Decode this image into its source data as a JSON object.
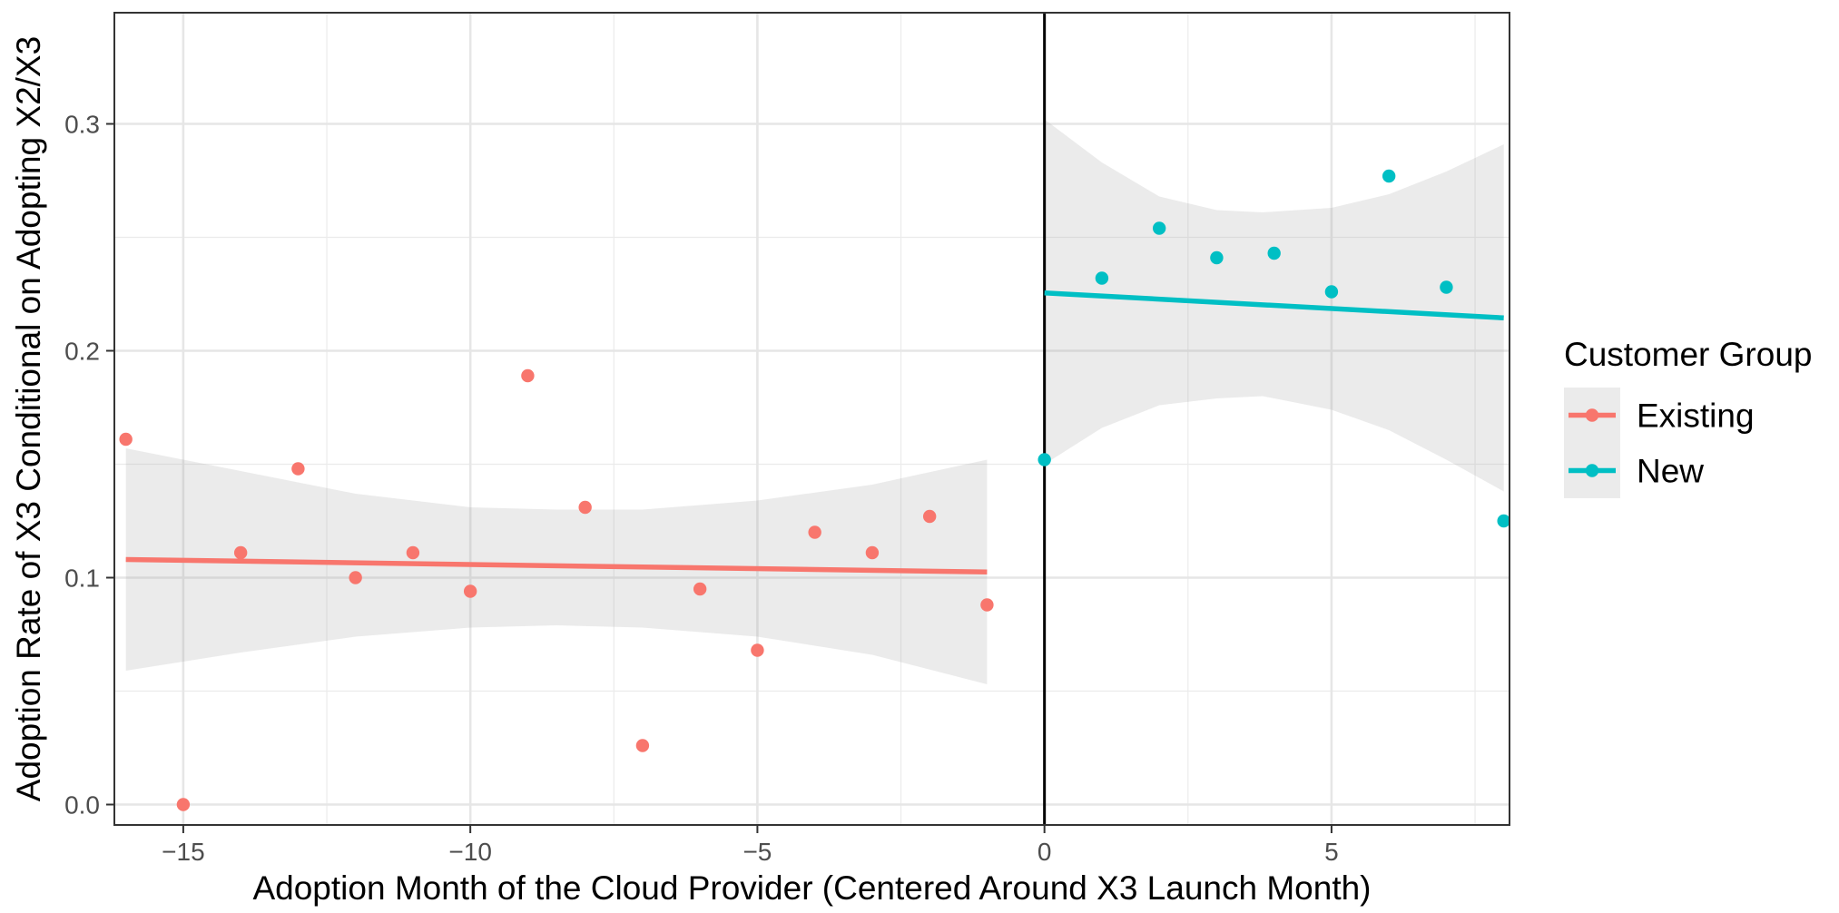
{
  "chart_data": {
    "type": "scatter",
    "xlabel": "Adoption Month of the Cloud Provider (Centered Around X3 Launch Month)",
    "ylabel": "Adoption Rate of X3 Conditional on Adopting X2/X3",
    "xlim": [
      -16.2,
      8.1
    ],
    "ylim": [
      -0.009,
      0.349
    ],
    "x_ticks": [
      -15,
      -10,
      -5,
      0,
      5
    ],
    "x_tick_labels": [
      "−15",
      "−10",
      "−5",
      "0",
      "5"
    ],
    "y_ticks": [
      0.0,
      0.1,
      0.2,
      0.3
    ],
    "y_tick_labels": [
      "0.0",
      "0.1",
      "0.2",
      "0.3"
    ],
    "vline_x": 0,
    "grid": true,
    "legend": {
      "title": "Customer Group",
      "placement": "right",
      "entries": [
        "Existing",
        "New"
      ]
    },
    "series": [
      {
        "name": "Existing",
        "color": "#F8766D",
        "points": [
          [
            -16,
            0.161
          ],
          [
            -15,
            0.0
          ],
          [
            -14,
            0.111
          ],
          [
            -13,
            0.148
          ],
          [
            -12,
            0.1
          ],
          [
            -11,
            0.111
          ],
          [
            -10,
            0.094
          ],
          [
            -9,
            0.189
          ],
          [
            -8,
            0.131
          ],
          [
            -7,
            0.026
          ],
          [
            -6,
            0.095
          ],
          [
            -5,
            0.068
          ],
          [
            -4,
            0.12
          ],
          [
            -3,
            0.111
          ],
          [
            -2,
            0.127
          ],
          [
            -1,
            0.088
          ]
        ],
        "fit_line": [
          [
            -16,
            0.108
          ],
          [
            -1,
            0.1025
          ]
        ],
        "ci_band": {
          "x": [
            -16,
            -14,
            -12,
            -10,
            -8.5,
            -7,
            -5,
            -3,
            -1
          ],
          "lower": [
            0.059,
            0.067,
            0.074,
            0.078,
            0.079,
            0.078,
            0.074,
            0.066,
            0.053
          ],
          "upper": [
            0.157,
            0.147,
            0.137,
            0.131,
            0.13,
            0.13,
            0.134,
            0.141,
            0.152
          ]
        }
      },
      {
        "name": "New",
        "color": "#00BFC4",
        "points": [
          [
            0,
            0.152
          ],
          [
            1,
            0.232
          ],
          [
            2,
            0.254
          ],
          [
            3,
            0.241
          ],
          [
            4,
            0.243
          ],
          [
            5,
            0.226
          ],
          [
            6,
            0.277
          ],
          [
            7,
            0.228
          ],
          [
            8,
            0.125
          ]
        ],
        "fit_line": [
          [
            0,
            0.2255
          ],
          [
            8,
            0.2145
          ]
        ],
        "ci_band": {
          "x": [
            0,
            1,
            2,
            3,
            3.8,
            5,
            6,
            7,
            8
          ],
          "lower": [
            0.15,
            0.166,
            0.176,
            0.179,
            0.18,
            0.174,
            0.165,
            0.152,
            0.138
          ],
          "upper": [
            0.302,
            0.283,
            0.268,
            0.262,
            0.261,
            0.263,
            0.269,
            0.279,
            0.291
          ]
        }
      }
    ]
  }
}
